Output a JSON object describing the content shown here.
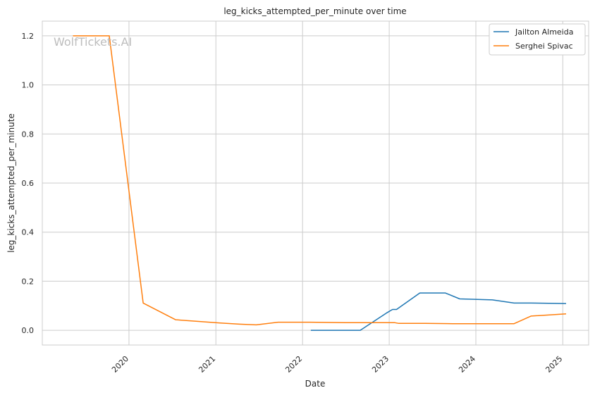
{
  "chart_data": {
    "type": "line",
    "title": "leg_kicks_attempted_per_minute over time",
    "xlabel": "Date",
    "ylabel": "leg_kicks_attempted_per_minute",
    "watermark": "WolfTickets.AI",
    "x_ticks": [
      "2020",
      "2021",
      "2022",
      "2023",
      "2024",
      "2025"
    ],
    "y_ticks": [
      "0.0",
      "0.2",
      "0.4",
      "0.6",
      "0.8",
      "1.0",
      "1.2"
    ],
    "xlim": [
      "2019-01-01",
      "2025-04-20"
    ],
    "ylim": [
      -0.06,
      1.26
    ],
    "grid": true,
    "legend_position": "top-right",
    "series": [
      {
        "name": "Jailton Almeida",
        "color": "#1f77b4",
        "points": [
          [
            "2022-02-05",
            0.0
          ],
          [
            "2022-04-10",
            0.0
          ],
          [
            "2022-06-20",
            0.0
          ],
          [
            "2022-09-01",
            0.0
          ],
          [
            "2022-12-20",
            0.07
          ],
          [
            "2023-01-15",
            0.085
          ],
          [
            "2023-02-01",
            0.085
          ],
          [
            "2023-05-10",
            0.152
          ],
          [
            "2023-08-25",
            0.152
          ],
          [
            "2023-10-25",
            0.128
          ],
          [
            "2024-03-10",
            0.124
          ],
          [
            "2024-06-10",
            0.111
          ],
          [
            "2024-08-20",
            0.111
          ],
          [
            "2025-01-15",
            0.109
          ]
        ]
      },
      {
        "name": "Serghei Spivac",
        "color": "#ff7f0e",
        "points": [
          [
            "2019-05-10",
            1.2
          ],
          [
            "2019-08-15",
            1.2
          ],
          [
            "2019-10-10",
            1.2
          ],
          [
            "2020-03-01",
            0.111
          ],
          [
            "2020-07-15",
            0.043
          ],
          [
            "2021-01-15",
            0.03
          ],
          [
            "2021-04-10",
            0.025
          ],
          [
            "2021-06-20",
            0.022
          ],
          [
            "2021-09-20",
            0.033
          ],
          [
            "2022-02-01",
            0.033
          ],
          [
            "2022-04-01",
            0.032
          ],
          [
            "2022-07-01",
            0.031
          ],
          [
            "2022-09-20",
            0.031
          ],
          [
            "2023-01-25",
            0.031
          ],
          [
            "2023-02-10",
            0.028
          ],
          [
            "2023-06-01",
            0.028
          ],
          [
            "2023-09-25",
            0.027
          ],
          [
            "2024-04-15",
            0.027
          ],
          [
            "2024-06-10",
            0.027
          ],
          [
            "2024-08-20",
            0.058
          ],
          [
            "2025-01-15",
            0.067
          ]
        ]
      }
    ]
  }
}
